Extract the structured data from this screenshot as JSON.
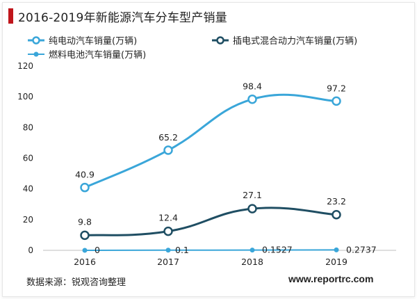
{
  "header": {
    "title": "2016-2019年新能源汽车分车型产销量"
  },
  "footer": {
    "source": "数据来源：锐观咨询整理",
    "website": "www.reportrc.com"
  },
  "colors": {
    "title_accent": "#c0161c",
    "bev": "#3aa6d9",
    "phev": "#1f4e63",
    "fcev": "#3aa6d9"
  },
  "chart_data": {
    "type": "line",
    "categories": [
      "2016",
      "2017",
      "2018",
      "2019"
    ],
    "ylim": [
      0,
      120
    ],
    "yticks": [
      0,
      20,
      40,
      60,
      80,
      100,
      120
    ],
    "grid": false,
    "legend_position": "top",
    "series": [
      {
        "name": "纯电动汽车销量(万辆)",
        "values": [
          40.9,
          65.2,
          98.4,
          97.2
        ],
        "labels": [
          "40.9",
          "65.2",
          "98.4",
          "97.2"
        ]
      },
      {
        "name": "插电式混合动力汽车销量(万辆)",
        "values": [
          9.8,
          12.4,
          27.1,
          23.2
        ],
        "labels": [
          "9.8",
          "12.4",
          "27.1",
          "23.2"
        ]
      },
      {
        "name": "燃料电池汽车销量(万辆)",
        "values": [
          0,
          0.1,
          0.1527,
          0.2737
        ],
        "labels": [
          "0",
          "0.1",
          "0.1527",
          "0.2737"
        ]
      }
    ]
  }
}
